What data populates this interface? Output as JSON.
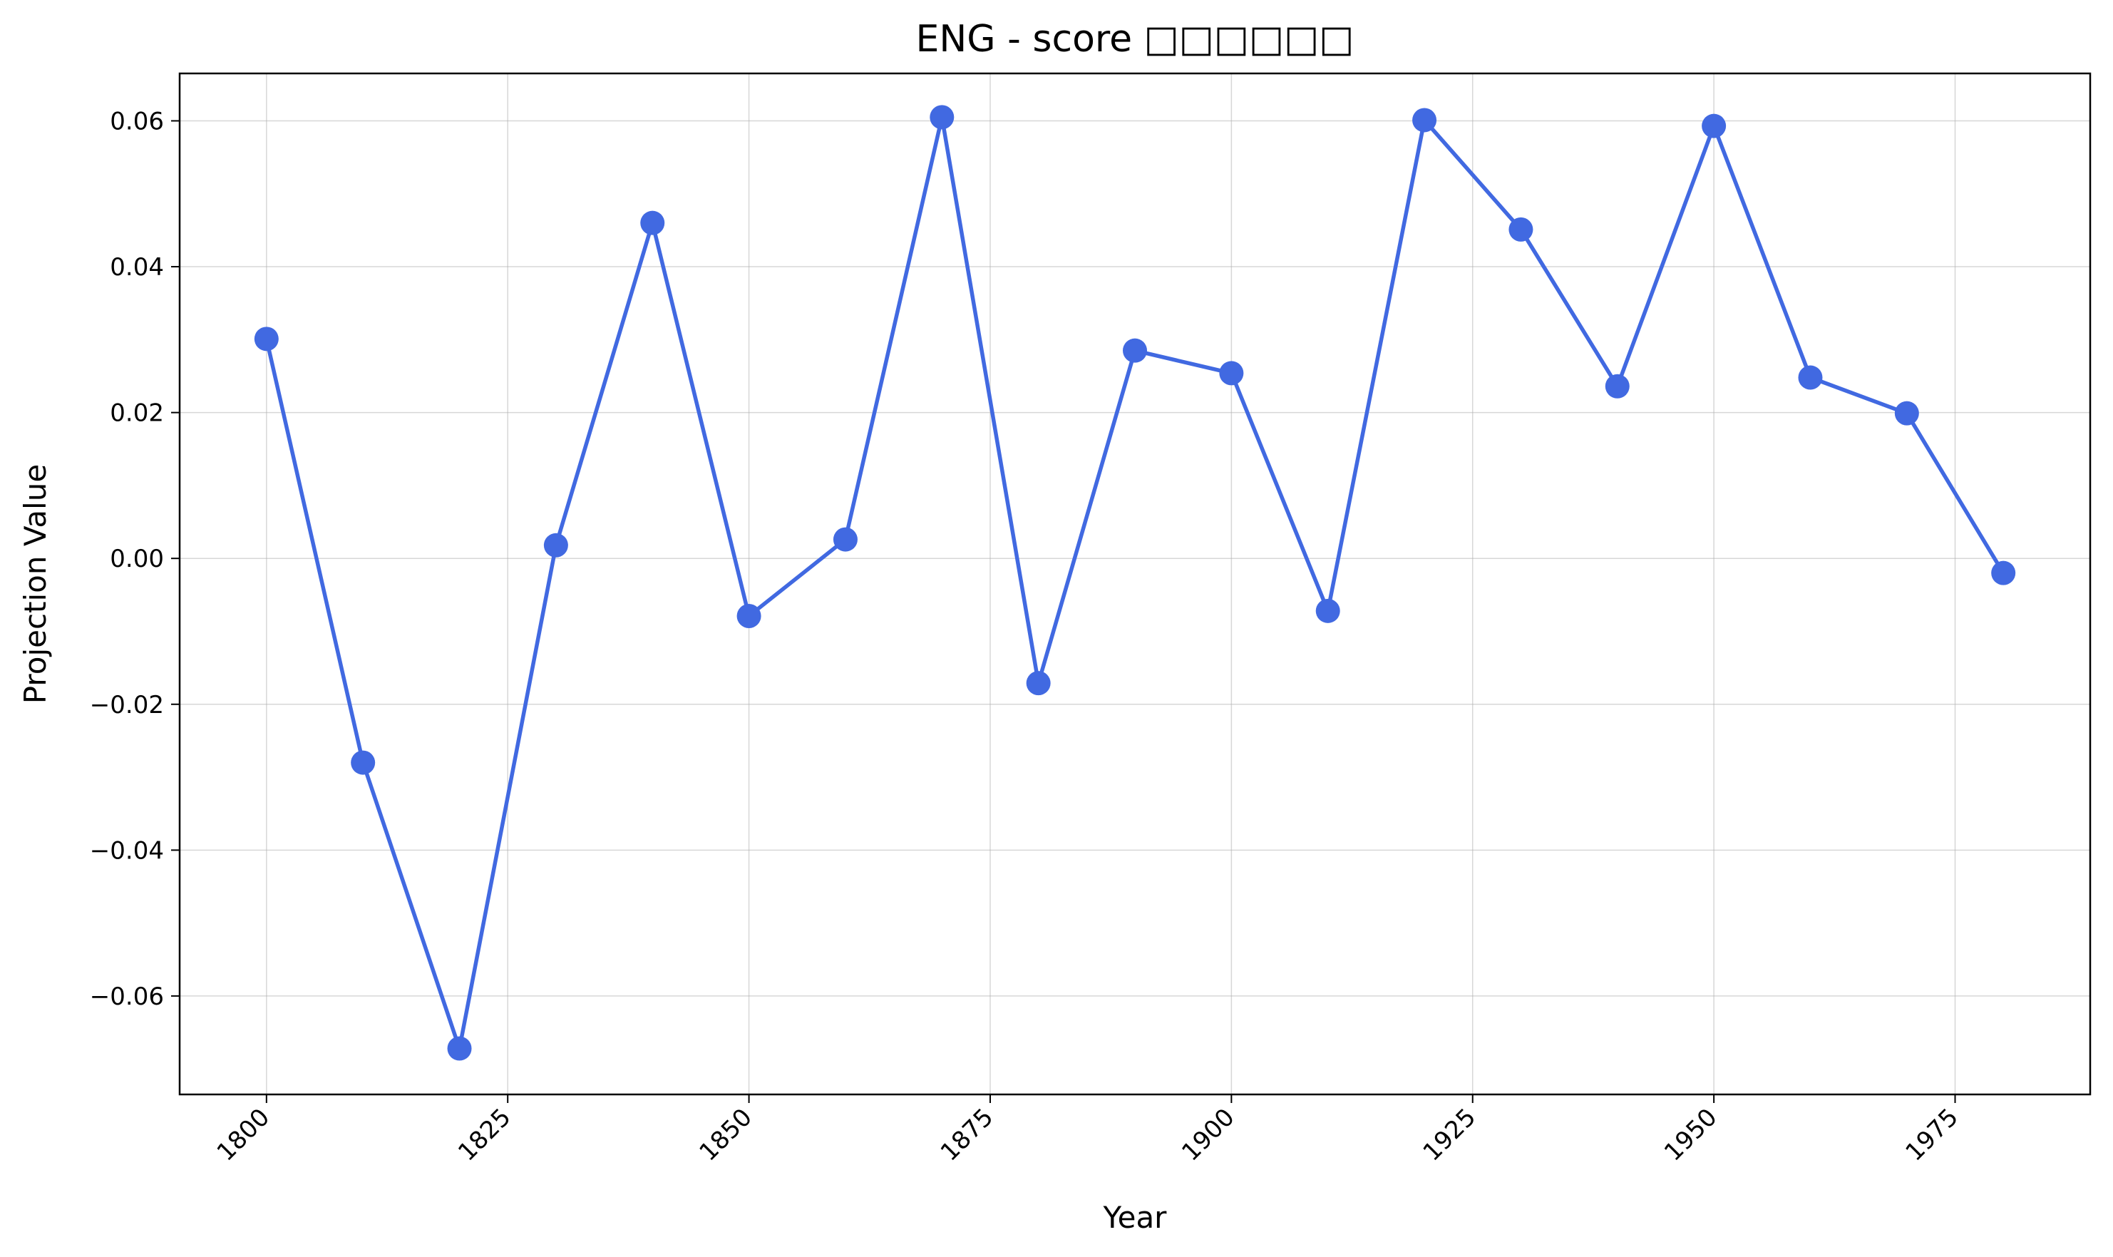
{
  "chart_data": {
    "type": "line",
    "title": "ENG - score □□□□□□",
    "xlabel": "Year",
    "ylabel": "Projection Value",
    "xlim": [
      1791,
      1989
    ],
    "ylim": [
      -0.0735,
      0.0665
    ],
    "x_ticks": [
      1800,
      1825,
      1850,
      1875,
      1900,
      1925,
      1950,
      1975
    ],
    "x_tick_labels": [
      "1800",
      "1825",
      "1850",
      "1875",
      "1900",
      "1925",
      "1950",
      "1975"
    ],
    "y_ticks": [
      -0.06,
      -0.04,
      -0.02,
      0.0,
      0.02,
      0.04,
      0.06
    ],
    "y_tick_labels": [
      "−0.06",
      "−0.04",
      "−0.02",
      "0.00",
      "0.02",
      "0.04",
      "0.06"
    ],
    "grid": true,
    "legend": "none",
    "series": [
      {
        "color": "#4169e1",
        "x": [
          1800,
          1810,
          1820,
          1830,
          1840,
          1850,
          1860,
          1870,
          1880,
          1890,
          1900,
          1910,
          1920,
          1930,
          1940,
          1950,
          1960,
          1970,
          1980
        ],
        "y": [
          0.0301,
          -0.028,
          -0.0672,
          0.0018,
          0.046,
          -0.0079,
          0.0026,
          0.0605,
          -0.0171,
          0.0285,
          0.0254,
          -0.0072,
          0.0601,
          0.0451,
          0.0236,
          0.0593,
          0.0248,
          0.0199,
          -0.002
        ]
      }
    ]
  }
}
